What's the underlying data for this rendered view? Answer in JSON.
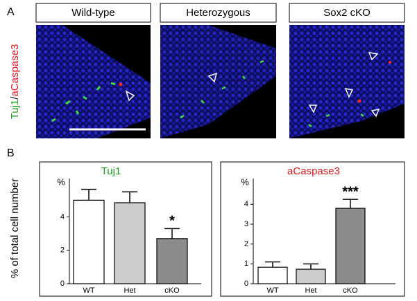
{
  "panel_labels": [
    "A",
    "B"
  ],
  "images": [
    {
      "title": "Wild-type"
    },
    {
      "title": "Heterozygous"
    },
    {
      "title": "Sox2 cKO"
    }
  ],
  "stain_label": {
    "green": "Tuj1",
    "separator": "/",
    "red": "aCaspase3"
  },
  "ylabel": "% of total cell number",
  "chart_data": [
    {
      "type": "bar",
      "title": "Tuj1",
      "title_color": "#1aa01a",
      "unit": "%",
      "categories": [
        "WT",
        "Het",
        "cKO"
      ],
      "values": [
        5.0,
        4.85,
        2.7
      ],
      "errors": [
        0.65,
        0.65,
        0.6
      ],
      "colors": [
        "#ffffff",
        "#cccccc",
        "#8c8c8c"
      ],
      "significance": [
        null,
        null,
        "*"
      ],
      "ylim": [
        0,
        6.3
      ],
      "yticks": [
        0,
        2,
        4
      ]
    },
    {
      "type": "bar",
      "title": "aCaspase3",
      "title_color": "#e8141c",
      "unit": "%",
      "categories": [
        "WT",
        "Het",
        "cKO"
      ],
      "values": [
        0.83,
        0.73,
        3.8
      ],
      "errors": [
        0.27,
        0.27,
        0.45
      ],
      "colors": [
        "#ffffff",
        "#cccccc",
        "#8c8c8c"
      ],
      "significance": [
        null,
        null,
        "***"
      ],
      "ylim": [
        0,
        5.3
      ],
      "yticks": [
        0,
        1,
        2,
        3,
        4
      ]
    }
  ]
}
